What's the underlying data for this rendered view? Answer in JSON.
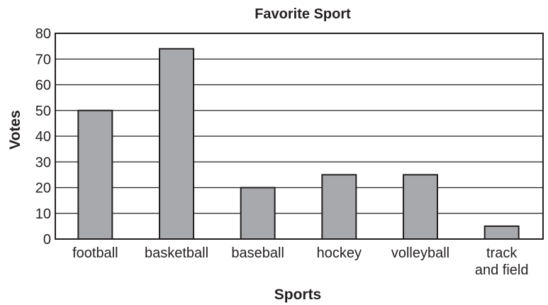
{
  "chart_data": {
    "type": "bar",
    "title": "Favorite Sport",
    "xlabel": "Sports",
    "ylabel": "Votes",
    "categories": [
      [
        "football"
      ],
      [
        "basketball"
      ],
      [
        "baseball"
      ],
      [
        "hockey"
      ],
      [
        "volleyball"
      ],
      [
        "track",
        "and field"
      ]
    ],
    "values": [
      50,
      74,
      20,
      25,
      25,
      5
    ],
    "ylim": [
      0,
      80
    ],
    "yticks": [
      0,
      10,
      20,
      30,
      40,
      50,
      60,
      70,
      80
    ],
    "grid": true,
    "bar_color": "#a7a9ac",
    "line_color": "#231f20"
  }
}
